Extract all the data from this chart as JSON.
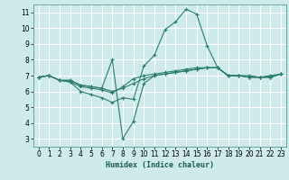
{
  "xlabel": "Humidex (Indice chaleur)",
  "ylabel": "",
  "background_color": "#ceeaea",
  "grid_color": "#ffffff",
  "line_color": "#2d7d6f",
  "xlim": [
    -0.5,
    23.5
  ],
  "ylim": [
    2.5,
    11.5
  ],
  "xticks": [
    0,
    1,
    2,
    3,
    4,
    5,
    6,
    7,
    8,
    9,
    10,
    11,
    12,
    13,
    14,
    15,
    16,
    17,
    18,
    19,
    20,
    21,
    22,
    23
  ],
  "yticks": [
    3,
    4,
    5,
    6,
    7,
    8,
    9,
    10,
    11
  ],
  "lines": [
    {
      "x": [
        0,
        1,
        2,
        3,
        4,
        5,
        6,
        7,
        8,
        9,
        10,
        11,
        12,
        13,
        14,
        15,
        16,
        17,
        18,
        19,
        20,
        21,
        22,
        23
      ],
      "y": [
        6.9,
        7.0,
        6.7,
        6.6,
        6.0,
        5.8,
        5.6,
        5.3,
        5.6,
        5.5,
        7.6,
        8.3,
        9.9,
        10.4,
        11.2,
        10.9,
        8.9,
        7.5,
        7.0,
        7.0,
        6.9,
        6.9,
        7.0,
        7.1
      ]
    },
    {
      "x": [
        0,
        1,
        2,
        3,
        4,
        5,
        6,
        7,
        8,
        9,
        10,
        11,
        12,
        13,
        14,
        15,
        16,
        17,
        18,
        19,
        20,
        21,
        22,
        23
      ],
      "y": [
        6.9,
        7.0,
        6.7,
        6.6,
        6.3,
        6.2,
        6.1,
        5.9,
        6.3,
        6.8,
        7.0,
        7.1,
        7.2,
        7.3,
        7.4,
        7.5,
        7.5,
        7.5,
        7.0,
        7.0,
        7.0,
        6.9,
        6.9,
        7.1
      ]
    },
    {
      "x": [
        0,
        1,
        2,
        3,
        4,
        5,
        6,
        7,
        8,
        9,
        10,
        11,
        12,
        13,
        14,
        15,
        16,
        17,
        18,
        19,
        20,
        21,
        22,
        23
      ],
      "y": [
        6.9,
        7.0,
        6.7,
        6.7,
        6.4,
        6.3,
        6.2,
        8.0,
        3.0,
        4.1,
        6.5,
        7.0,
        7.1,
        7.2,
        7.3,
        7.4,
        7.5,
        7.5,
        7.0,
        7.0,
        6.9,
        6.9,
        6.9,
        7.1
      ]
    },
    {
      "x": [
        0,
        1,
        2,
        3,
        4,
        5,
        6,
        7,
        8,
        9,
        10,
        11,
        12,
        13,
        14,
        15,
        16,
        17,
        18,
        19,
        20,
        21,
        22,
        23
      ],
      "y": [
        6.9,
        7.0,
        6.7,
        6.7,
        6.4,
        6.3,
        6.2,
        6.0,
        6.2,
        6.5,
        6.8,
        7.0,
        7.1,
        7.2,
        7.3,
        7.4,
        7.5,
        7.5,
        7.0,
        7.0,
        6.9,
        6.9,
        6.9,
        7.1
      ]
    }
  ]
}
